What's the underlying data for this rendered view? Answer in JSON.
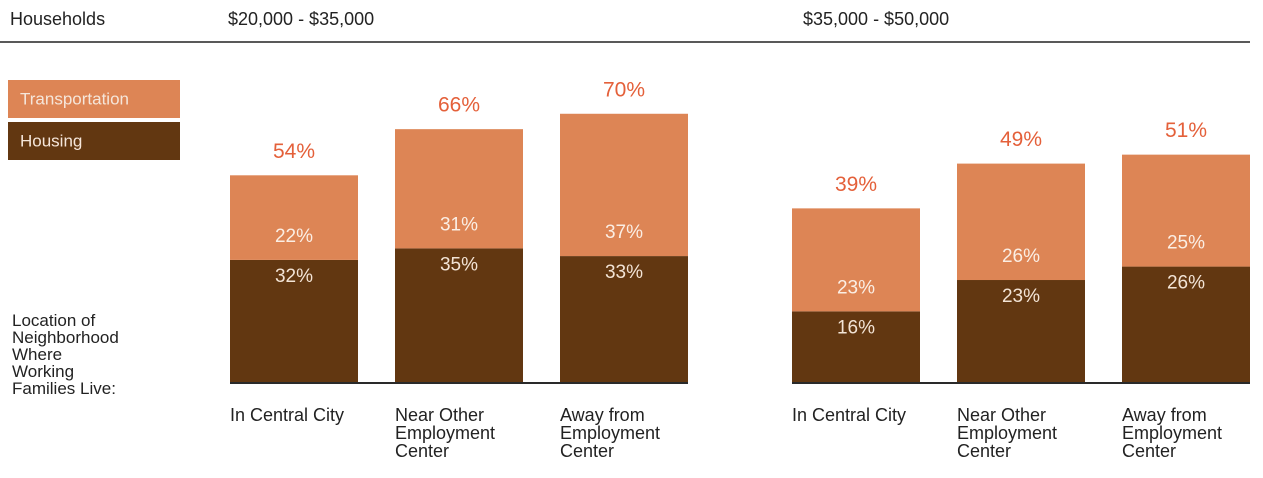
{
  "header": "Households",
  "axis_label": "Location of Neighborhood Where Working Families Live:",
  "chart_data": [
    {
      "type": "stacked-bar",
      "title": "$20,000 - $35,000",
      "categories": [
        "In Central City",
        "Near Other Employment Center",
        "Away from Employment Center"
      ],
      "series": [
        {
          "name": "Housing",
          "color": "#623711",
          "values": [
            32,
            35,
            33
          ],
          "value_labels": [
            "32%",
            "35%",
            "33%"
          ]
        },
        {
          "name": "Transportation",
          "color": "#dd8555",
          "values": [
            22,
            31,
            37
          ],
          "value_labels": [
            "22%",
            "31%",
            "37%"
          ]
        }
      ],
      "totals": [
        54,
        66,
        70
      ],
      "total_labels": [
        "54%",
        "66%",
        "70%"
      ],
      "ylim": [
        0,
        78
      ]
    },
    {
      "type": "stacked-bar",
      "title": "$35,000 - $50,000",
      "categories": [
        "In Central City",
        "Near Other Employment Center",
        "Away from Employment Center"
      ],
      "series": [
        {
          "name": "Housing",
          "color": "#623711",
          "values": [
            16,
            23,
            26
          ],
          "value_labels": [
            "16%",
            "23%",
            "26%"
          ]
        },
        {
          "name": "Transportation",
          "color": "#dd8555",
          "values": [
            23,
            26,
            25
          ],
          "value_labels": [
            "23%",
            "26%",
            "25%"
          ]
        }
      ],
      "totals": [
        39,
        49,
        51
      ],
      "total_labels": [
        "39%",
        "49%",
        "51%"
      ],
      "ylim": [
        0,
        67
      ]
    }
  ]
}
